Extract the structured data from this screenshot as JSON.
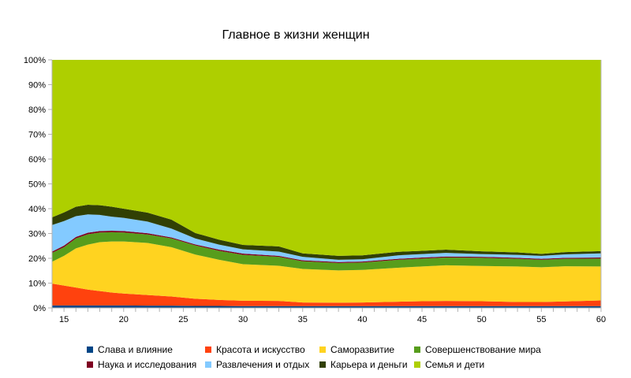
{
  "chart_data": {
    "type": "area",
    "stacked": "percent",
    "title": "Главное в жизни женщин",
    "xlabel": "",
    "ylabel": "",
    "xlim": [
      14,
      60
    ],
    "ylim": [
      0,
      100
    ],
    "x_ticks": [
      "15",
      "20",
      "25",
      "30",
      "35",
      "40",
      "45",
      "50",
      "55",
      "60"
    ],
    "y_ticks": [
      "0%",
      "10%",
      "20%",
      "30%",
      "40%",
      "50%",
      "60%",
      "70%",
      "80%",
      "90%",
      "100%"
    ],
    "grid": false,
    "legend_position": "bottom",
    "x": [
      14,
      15,
      16,
      17,
      18,
      19,
      20,
      22,
      24,
      26,
      28,
      30,
      33,
      35,
      38,
      40,
      43,
      45,
      47,
      50,
      53,
      55,
      57,
      60
    ],
    "series": [
      {
        "name": "Слава и влияние",
        "color": "#004586",
        "values": [
          1,
          1,
          1,
          1,
          1,
          1,
          1,
          0.9,
          0.9,
          0.8,
          0.8,
          0.7,
          0.7,
          0.7,
          0.7,
          0.7,
          0.7,
          0.7,
          0.7,
          0.7,
          0.7,
          0.7,
          0.7,
          0.7
        ]
      },
      {
        "name": "Красота и искусство",
        "color": "#ff420e",
        "values": [
          8.8,
          8,
          7.2,
          6.4,
          5.8,
          5.2,
          4.8,
          4.3,
          3.7,
          2.9,
          2.4,
          2.2,
          2.1,
          1.5,
          1.4,
          1.5,
          1.8,
          2,
          2.1,
          2,
          1.7,
          1.7,
          1.9,
          2.3
        ]
      },
      {
        "name": "Саморазвитие",
        "color": "#ffd320",
        "values": [
          8.8,
          12,
          15.8,
          18.1,
          19.7,
          20.6,
          21,
          21,
          19.9,
          17.8,
          16.2,
          14.7,
          14.2,
          13.5,
          13,
          13.1,
          13.7,
          14,
          14.4,
          14.2,
          14.3,
          14,
          14.2,
          13.7
        ]
      },
      {
        "name": "Совершенствование мира",
        "color": "#579d1c",
        "values": [
          3.6,
          3.5,
          4,
          4.2,
          3.9,
          3.7,
          3.6,
          3.4,
          3.5,
          3.7,
          3.6,
          3.8,
          3.6,
          3.1,
          3,
          3,
          3.2,
          3.2,
          3.1,
          3.3,
          3.1,
          3,
          3,
          3.2
        ]
      },
      {
        "name": "Наука и исследования",
        "color": "#7e0021",
        "values": [
          0.5,
          0.6,
          0.6,
          0.6,
          0.6,
          0.6,
          0.6,
          0.5,
          0.4,
          0.4,
          0.5,
          0.5,
          0.4,
          0.4,
          0.4,
          0.4,
          0.4,
          0.4,
          0.4,
          0.4,
          0.4,
          0.4,
          0.4,
          0.4
        ]
      },
      {
        "name": "Развлечения и отдых",
        "color": "#83caff",
        "values": [
          10.7,
          9.9,
          8.4,
          7.4,
          6.5,
          5.7,
          5.3,
          4.7,
          3.6,
          2.4,
          2,
          1.7,
          1.7,
          1.4,
          0.9,
          0.9,
          1.4,
          1.4,
          1.5,
          1.1,
          1.2,
          1.2,
          1.4,
          1.7
        ]
      },
      {
        "name": "Карьера и деньги",
        "color": "#314004",
        "values": [
          3.1,
          3.5,
          3.8,
          3.9,
          3.9,
          4,
          3.7,
          3.6,
          3.6,
          2.2,
          2,
          1.8,
          2.1,
          1.4,
          1.6,
          1.6,
          1.4,
          1.3,
          1.3,
          1.1,
          1,
          0.8,
          0.9,
          0.9
        ]
      },
      {
        "name": "Семья и дети",
        "color": "#aecf00",
        "values": [
          63.5,
          61.5,
          59.2,
          58.4,
          58.6,
          59.2,
          60,
          61.6,
          64.4,
          69.8,
          72.5,
          74.6,
          75.2,
          78,
          79,
          78.8,
          77.4,
          77,
          76.5,
          77.2,
          77.6,
          78.2,
          77.5,
          77.1
        ]
      }
    ]
  }
}
